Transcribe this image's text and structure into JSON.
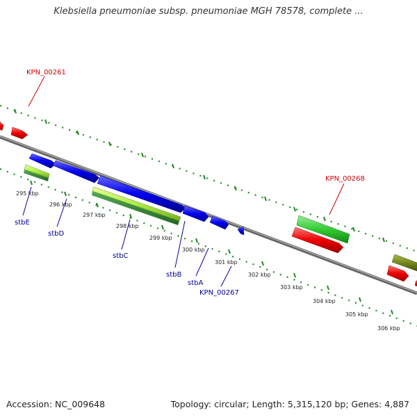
{
  "title": "Klebsiella pneumoniae subsp. pneumoniae MGH 78578, complete ...",
  "footer": {
    "accession": "Accession: NC_009648",
    "summary": "Topology: circular; Length: 5,315,120 bp; Genes: 4,887"
  },
  "colors": {
    "blue_genes": "#0000ee",
    "red_genes": "#ee0000",
    "green_genes": "#33cc33",
    "lightgreen_genes": "#aaee44",
    "olive_genes": "#778822",
    "tick_green": "#228822",
    "backbone": "#888888",
    "label_red": "#cc0000",
    "label_blue": "#000099"
  },
  "scale": {
    "ticks": [
      "295 kbp",
      "296 kbp",
      "297 kbp",
      "298 kbp",
      "299 kbp",
      "300 kbp",
      "301 kbp",
      "302 kbp",
      "303 kbp",
      "304 kbp",
      "305 kbp",
      "306 kbp"
    ]
  },
  "labels": {
    "red": [
      "KPN_00261",
      "KPN_00268"
    ],
    "blue": [
      "stbE",
      "stbD",
      "stbC",
      "stbB",
      "stbA",
      "KPN_00267"
    ]
  }
}
